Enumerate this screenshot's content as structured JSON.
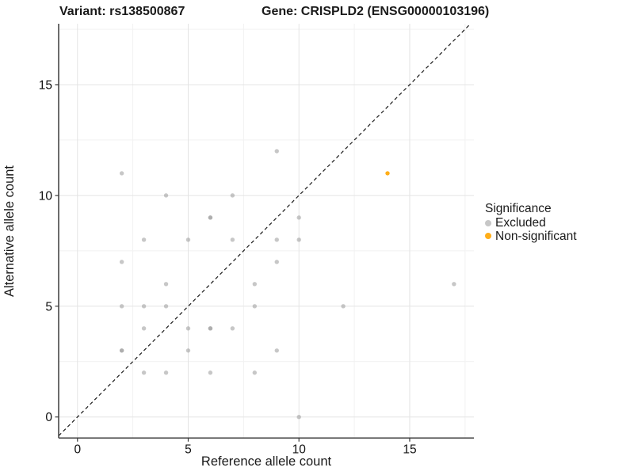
{
  "chart_data": {
    "type": "scatter",
    "title_variant": "Variant: rs138500867",
    "title_gene": "Gene: CRISPLD2 (ENSG00000103196)",
    "xlabel": "Reference allele count",
    "ylabel": "Alternative allele count",
    "xlim": [
      -0.85,
      17.9
    ],
    "ylim": [
      -0.95,
      17.75
    ],
    "xticks": [
      0,
      5,
      10,
      15
    ],
    "yticks": [
      0,
      5,
      10,
      15
    ],
    "minor_ticks": [
      2.5,
      7.5,
      12.5,
      17.5
    ],
    "grid": "major+minor on, white background",
    "colors": {
      "major_grid": "#e4e4e4",
      "minor_grid": "#f1f1f1",
      "axis_line": "#3c3c3c",
      "reference_line": "#1a1a1a",
      "excluded": "#999999",
      "non_significant": "#FFA500"
    },
    "reference_line": {
      "type": "identity y=x",
      "style": "dashed"
    },
    "legend": {
      "title": "Significance",
      "position": "right",
      "items": [
        {
          "label": "Excluded",
          "color": "#999999",
          "opacity": 0.55
        },
        {
          "label": "Non-significant",
          "color": "#FFA500",
          "opacity": 0.9
        }
      ]
    },
    "series": [
      {
        "name": "Excluded",
        "color": "#999999",
        "opacity": 0.55,
        "points": [
          [
            9,
            12
          ],
          [
            2,
            11
          ],
          [
            4,
            10
          ],
          [
            7,
            10
          ],
          [
            6,
            9
          ],
          [
            6,
            9
          ],
          [
            10,
            9
          ],
          [
            3,
            8
          ],
          [
            5,
            8
          ],
          [
            7,
            8
          ],
          [
            9,
            8
          ],
          [
            10,
            8
          ],
          [
            2,
            7
          ],
          [
            9,
            7
          ],
          [
            4,
            6
          ],
          [
            8,
            6
          ],
          [
            17,
            6
          ],
          [
            2,
            5
          ],
          [
            3,
            5
          ],
          [
            4,
            5
          ],
          [
            8,
            5
          ],
          [
            12,
            5
          ],
          [
            3,
            4
          ],
          [
            5,
            4
          ],
          [
            6,
            4
          ],
          [
            6,
            4
          ],
          [
            7,
            4
          ],
          [
            2,
            3
          ],
          [
            2,
            3
          ],
          [
            5,
            3
          ],
          [
            9,
            3
          ],
          [
            3,
            2
          ],
          [
            4,
            2
          ],
          [
            6,
            2
          ],
          [
            8,
            2
          ],
          [
            10,
            0
          ]
        ]
      },
      {
        "name": "Non-significant",
        "color": "#FFA500",
        "opacity": 0.9,
        "points": [
          [
            14,
            11
          ]
        ]
      }
    ]
  }
}
